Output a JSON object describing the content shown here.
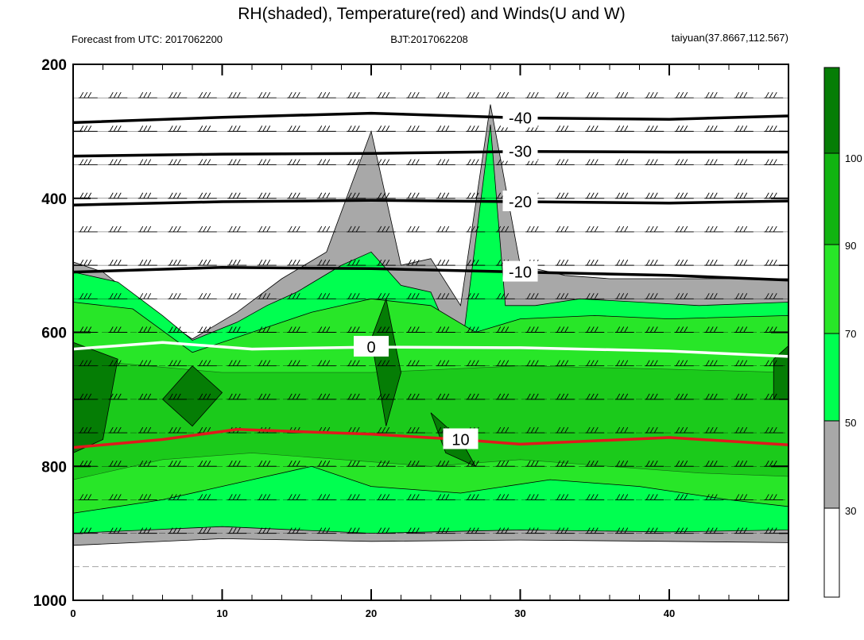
{
  "chart_data": {
    "type": "heatmap",
    "title": "RH(shaded), Temperature(red) and Winds(U and W)",
    "subtitle_left": "Forecast from UTC: 2017062200",
    "subtitle_center": "BJT:2017062208",
    "subtitle_right": "taiyuan(37.8667,112.567)",
    "x_ticks": [
      "0",
      "10",
      "20",
      "30",
      "40"
    ],
    "y_ticks": [
      "200",
      "400",
      "600",
      "800",
      "1000"
    ],
    "xlim": [
      0,
      48
    ],
    "ylim": [
      1000,
      200
    ],
    "colorbar": {
      "labels": [
        "30",
        "50",
        "70",
        "90",
        "100"
      ],
      "colors": [
        "#ffffff",
        "#a8a8a8",
        "#00ff50",
        "#28e628",
        "#11b411",
        "#057d05"
      ]
    },
    "series": [
      {
        "name": "Temperature(red)",
        "color": "#e0191c"
      },
      {
        "name": "RH(shaded)",
        "color": "#28e628"
      }
    ],
    "contours": {
      "temperature": [
        {
          "label": "-40",
          "color": "#000000",
          "points": [
            [
              0,
              287
            ],
            [
              10,
              279
            ],
            [
              20,
              273
            ],
            [
              30,
              280
            ],
            [
              40,
              282
            ],
            [
              48,
              277
            ]
          ]
        },
        {
          "label": "-30",
          "color": "#000000",
          "points": [
            [
              0,
              337
            ],
            [
              10,
              334
            ],
            [
              20,
              333
            ],
            [
              30,
              330
            ],
            [
              40,
              331
            ],
            [
              48,
              331
            ]
          ]
        },
        {
          "label": "-20",
          "color": "#000000",
          "points": [
            [
              0,
              410
            ],
            [
              10,
              405
            ],
            [
              20,
              403
            ],
            [
              30,
              405
            ],
            [
              40,
              407
            ],
            [
              48,
              404
            ]
          ]
        },
        {
          "label": "-10",
          "color": "#000000",
          "points": [
            [
              0,
              510
            ],
            [
              10,
              503
            ],
            [
              20,
              505
            ],
            [
              30,
              510
            ],
            [
              40,
              515
            ],
            [
              48,
              522
            ]
          ]
        },
        {
          "label": "0",
          "color": "#ffffff",
          "points": [
            [
              0,
              625
            ],
            [
              6,
              615
            ],
            [
              12,
              625
            ],
            [
              20,
              622
            ],
            [
              30,
              623
            ],
            [
              40,
              628
            ],
            [
              48,
              636
            ]
          ]
        },
        {
          "label": "10",
          "color": "#e0191c",
          "points": [
            [
              0,
              772
            ],
            [
              6,
              760
            ],
            [
              11,
              745
            ],
            [
              20,
              752
            ],
            [
              26,
              760
            ],
            [
              30,
              767
            ],
            [
              40,
              757
            ],
            [
              48,
              768
            ]
          ]
        }
      ]
    }
  }
}
